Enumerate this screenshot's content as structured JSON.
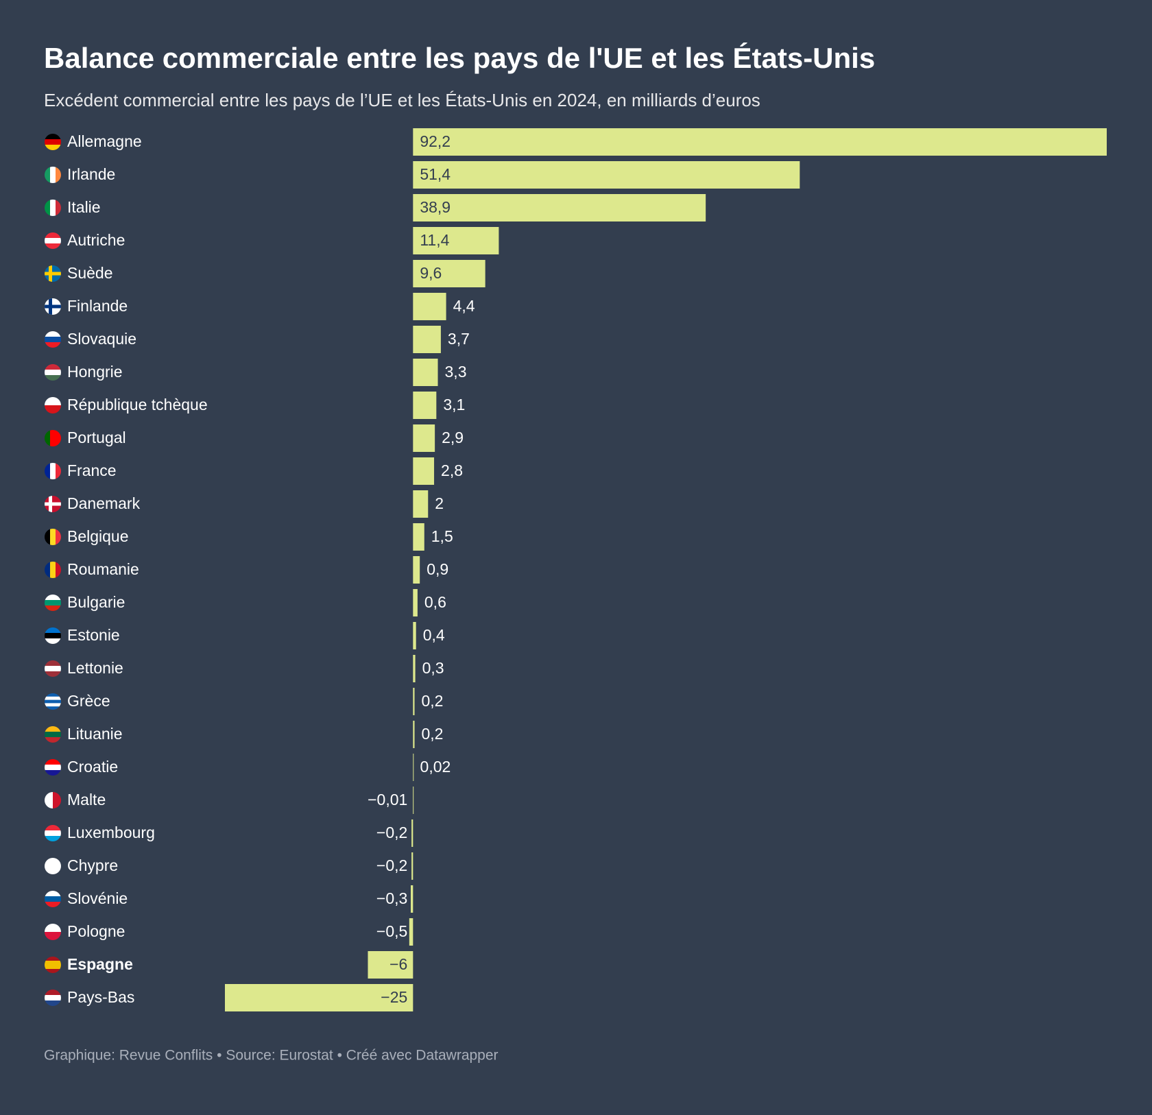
{
  "chart_data": {
    "type": "bar",
    "orientation": "horizontal",
    "title": "Balance commerciale entre les pays de l'UE et les États-Unis",
    "subtitle": "Excédent commercial entre les pays de l’UE et les États-Unis en 2024, en milliards d’euros",
    "footer": "Graphique: Revue Conflits • Source: Eurostat • Créé avec Datawrapper",
    "categories": [
      "Allemagne",
      "Irlande",
      "Italie",
      "Autriche",
      "Suède",
      "Finlande",
      "Slovaquie",
      "Hongrie",
      "République tchèque",
      "Portugal",
      "France",
      "Danemark",
      "Belgique",
      "Roumanie",
      "Bulgarie",
      "Estonie",
      "Lettonie",
      "Grèce",
      "Lituanie",
      "Croatie",
      "Malte",
      "Luxembourg",
      "Chypre",
      "Slovénie",
      "Pologne",
      "Espagne",
      "Pays-Bas"
    ],
    "values": [
      92.2,
      51.4,
      38.9,
      11.4,
      9.6,
      4.4,
      3.7,
      3.3,
      3.1,
      2.9,
      2.8,
      2,
      1.5,
      0.9,
      0.6,
      0.4,
      0.3,
      0.2,
      0.2,
      0.02,
      -0.01,
      -0.2,
      -0.2,
      -0.3,
      -0.5,
      -6,
      -25
    ],
    "value_labels": [
      "92,2",
      "51,4",
      "38,9",
      "11,4",
      "9,6",
      "4,4",
      "3,7",
      "3,3",
      "3,1",
      "2,9",
      "2,8",
      "2",
      "1,5",
      "0,9",
      "0,6",
      "0,4",
      "0,3",
      "0,2",
      "0,2",
      "0,02",
      "−0,01",
      "−0,2",
      "−0,2",
      "−0,3",
      "−0,5",
      "−6",
      "−25"
    ],
    "color": "#dde88d",
    "xlim": [
      -25,
      92.2
    ],
    "bold_categories": [
      25
    ]
  }
}
